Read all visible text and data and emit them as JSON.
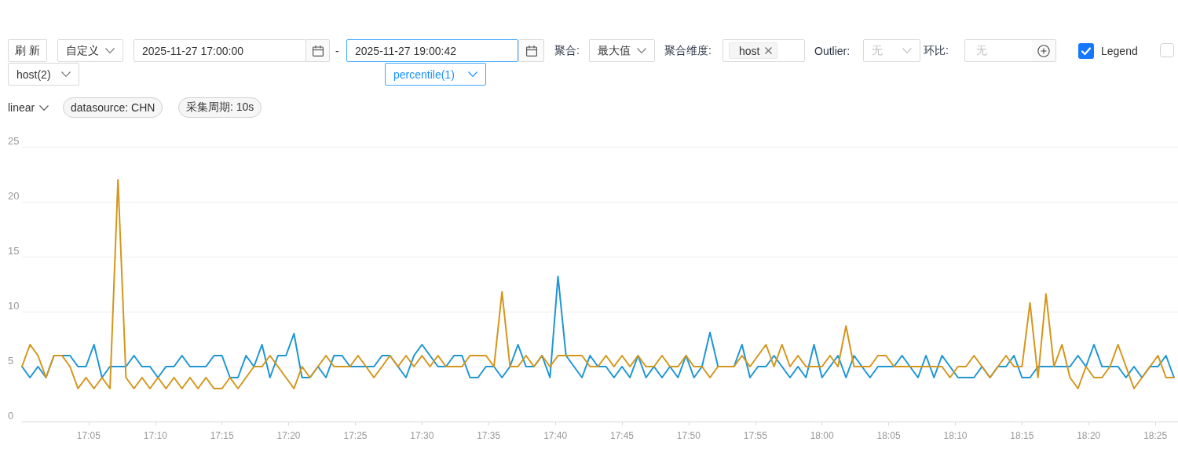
{
  "chart_data": {
    "type": "line",
    "annotations": [
      "刷 新",
      "自定义",
      "2025-11-27 17:00:00",
      "-",
      "2025-11-27 19:00:42",
      "聚合:",
      "最大值",
      "聚合维度:",
      "host",
      "Outlier:",
      "无",
      "环比:",
      "无",
      "Legend",
      "host(2)",
      "percentile(1)",
      "linear",
      "datasource: CHN",
      "采集周期: 10s"
    ],
    "x": [
      17,
      17.01,
      17.02,
      17.03,
      17.04,
      17.05,
      17.06,
      17.07,
      17.08,
      17.09,
      17.1,
      17.11,
      17.12,
      17.13,
      17.14,
      17.15,
      17.16,
      17.17,
      17.18,
      17.19,
      17.2,
      17.21,
      17.22,
      17.23,
      17.24,
      17.25,
      17.26,
      17.27,
      17.28,
      17.29,
      17.3,
      17.31,
      17.32,
      17.33,
      17.34,
      17.35,
      17.36,
      17.37,
      17.38,
      17.39,
      17.4,
      17.41,
      17.42,
      17.43,
      17.44,
      17.45,
      17.46,
      17.47,
      17.48,
      17.49,
      17.5,
      17.51,
      17.52,
      17.53,
      17.54,
      17.55,
      17.56,
      17.57,
      17.58,
      17.59,
      17.6,
      17.61,
      17.62,
      17.63,
      17.64,
      17.65,
      17.66,
      17.67,
      17.68,
      17.69,
      17.7,
      17.71,
      17.72,
      17.73,
      17.74,
      17.75,
      17.76,
      17.77,
      17.78,
      17.79,
      17.8,
      17.81,
      17.82,
      17.83,
      17.84,
      17.85,
      17.86,
      17.87,
      17.88,
      17.89,
      17.9,
      17.91,
      17.92,
      17.93,
      17.94,
      17.95,
      17.96,
      17.97,
      17.98,
      17.99,
      18,
      18.01,
      18.02,
      18.03,
      18.04,
      18.05,
      18.06,
      18.07,
      18.08,
      18.09,
      18.1,
      18.11,
      18.12,
      18.13,
      18.14,
      18.15,
      18.16,
      18.17,
      18.18,
      18.19,
      18.2,
      18.21,
      18.22,
      18.23,
      18.24,
      18.25,
      18.26,
      18.27,
      18.28,
      18.29,
      18.3,
      18.31,
      18.32,
      18.33,
      18.34,
      18.35,
      18.36,
      18.37,
      18.38,
      18.39,
      18.4,
      18.41,
      18.42,
      18.43,
      18.44
    ],
    "series": [
      {
        "color": "#1e96d4",
        "values": [
          5,
          4,
          5,
          4,
          6,
          6,
          6,
          5,
          5,
          7,
          4,
          5,
          5,
          5,
          6,
          5,
          5,
          4,
          5,
          5,
          6,
          5,
          5,
          5,
          6,
          6,
          4,
          4,
          6,
          5,
          7,
          4,
          6,
          6,
          8,
          4,
          4,
          5,
          4,
          6,
          6,
          5,
          5,
          5,
          5,
          6,
          6,
          5,
          4,
          6,
          7,
          6,
          5,
          5,
          6,
          6,
          4,
          4,
          5,
          5,
          4,
          5,
          7,
          5,
          5,
          6,
          4,
          13.2,
          6,
          5,
          4,
          6,
          5,
          5,
          4,
          5,
          4,
          6,
          4,
          5,
          4,
          5,
          4,
          6,
          4,
          5,
          8.1,
          5,
          5,
          5,
          7,
          4,
          5,
          5,
          6,
          5,
          4,
          5,
          4,
          7,
          4,
          5,
          6,
          4,
          6,
          5,
          4,
          5,
          5,
          5,
          6,
          5,
          4,
          6,
          4,
          6,
          5,
          4,
          4,
          4,
          5,
          4,
          5,
          5,
          6,
          4,
          4,
          5,
          5,
          5,
          5,
          5,
          6,
          5,
          7,
          5,
          5,
          5,
          4,
          5,
          4,
          5,
          5,
          6,
          4
        ]
      },
      {
        "color": "#d4961c",
        "values": [
          5,
          7,
          6,
          4,
          6,
          6,
          5,
          3,
          4,
          3,
          4,
          3,
          22,
          4,
          3,
          4,
          3,
          4,
          3,
          4,
          3,
          4,
          3,
          4,
          3,
          3,
          4,
          3,
          4,
          5,
          5,
          6,
          5,
          4,
          3,
          5,
          4,
          5,
          6,
          5,
          5,
          5,
          6,
          5,
          4,
          5,
          6,
          5,
          6,
          5,
          6,
          5,
          6,
          5,
          5,
          5,
          6,
          6,
          6,
          5,
          11.8,
          5,
          5,
          6,
          5,
          6,
          5,
          6,
          6,
          6,
          6,
          5,
          5,
          6,
          5,
          6,
          5,
          6,
          5,
          5,
          6,
          5,
          5,
          6,
          5,
          5,
          4,
          5,
          5,
          5,
          6,
          5,
          6,
          7,
          5,
          7,
          5,
          6,
          5,
          5,
          5,
          6,
          5,
          8.7,
          5,
          5,
          5,
          6,
          6,
          5,
          5,
          5,
          5,
          5,
          5,
          5,
          4,
          5,
          5,
          6,
          5,
          4,
          5,
          6,
          5,
          5,
          10.8,
          4,
          11.6,
          5,
          7,
          4,
          3,
          5,
          4,
          4,
          5,
          7,
          5,
          3,
          4,
          5,
          6,
          4,
          4
        ]
      }
    ],
    "xlim": [
      17,
      18.445
    ],
    "xticks": [
      {
        "value": 17.0833,
        "label": "17:05"
      },
      {
        "value": 17.1667,
        "label": "17:10"
      },
      {
        "value": 17.25,
        "label": "17:15"
      },
      {
        "value": 17.3333,
        "label": "17:20"
      },
      {
        "value": 17.4167,
        "label": "17:25"
      },
      {
        "value": 17.5,
        "label": "17:30"
      },
      {
        "value": 17.5833,
        "label": "17:35"
      },
      {
        "value": 17.6667,
        "label": "17:40"
      },
      {
        "value": 17.75,
        "label": "17:45"
      },
      {
        "value": 17.8333,
        "label": "17:50"
      },
      {
        "value": 17.9167,
        "label": "17:55"
      },
      {
        "value": 18,
        "label": "18:00"
      },
      {
        "value": 18.0833,
        "label": "18:05"
      },
      {
        "value": 18.1667,
        "label": "18:10"
      },
      {
        "value": 18.25,
        "label": "18:15"
      },
      {
        "value": 18.3333,
        "label": "18:20"
      },
      {
        "value": 18.4167,
        "label": "18:25"
      }
    ],
    "ylim": [
      0,
      25
    ],
    "yticks": [
      0,
      5,
      10,
      15,
      20,
      25
    ],
    "grid": "y",
    "marker": "none",
    "line_style": "solid"
  }
}
